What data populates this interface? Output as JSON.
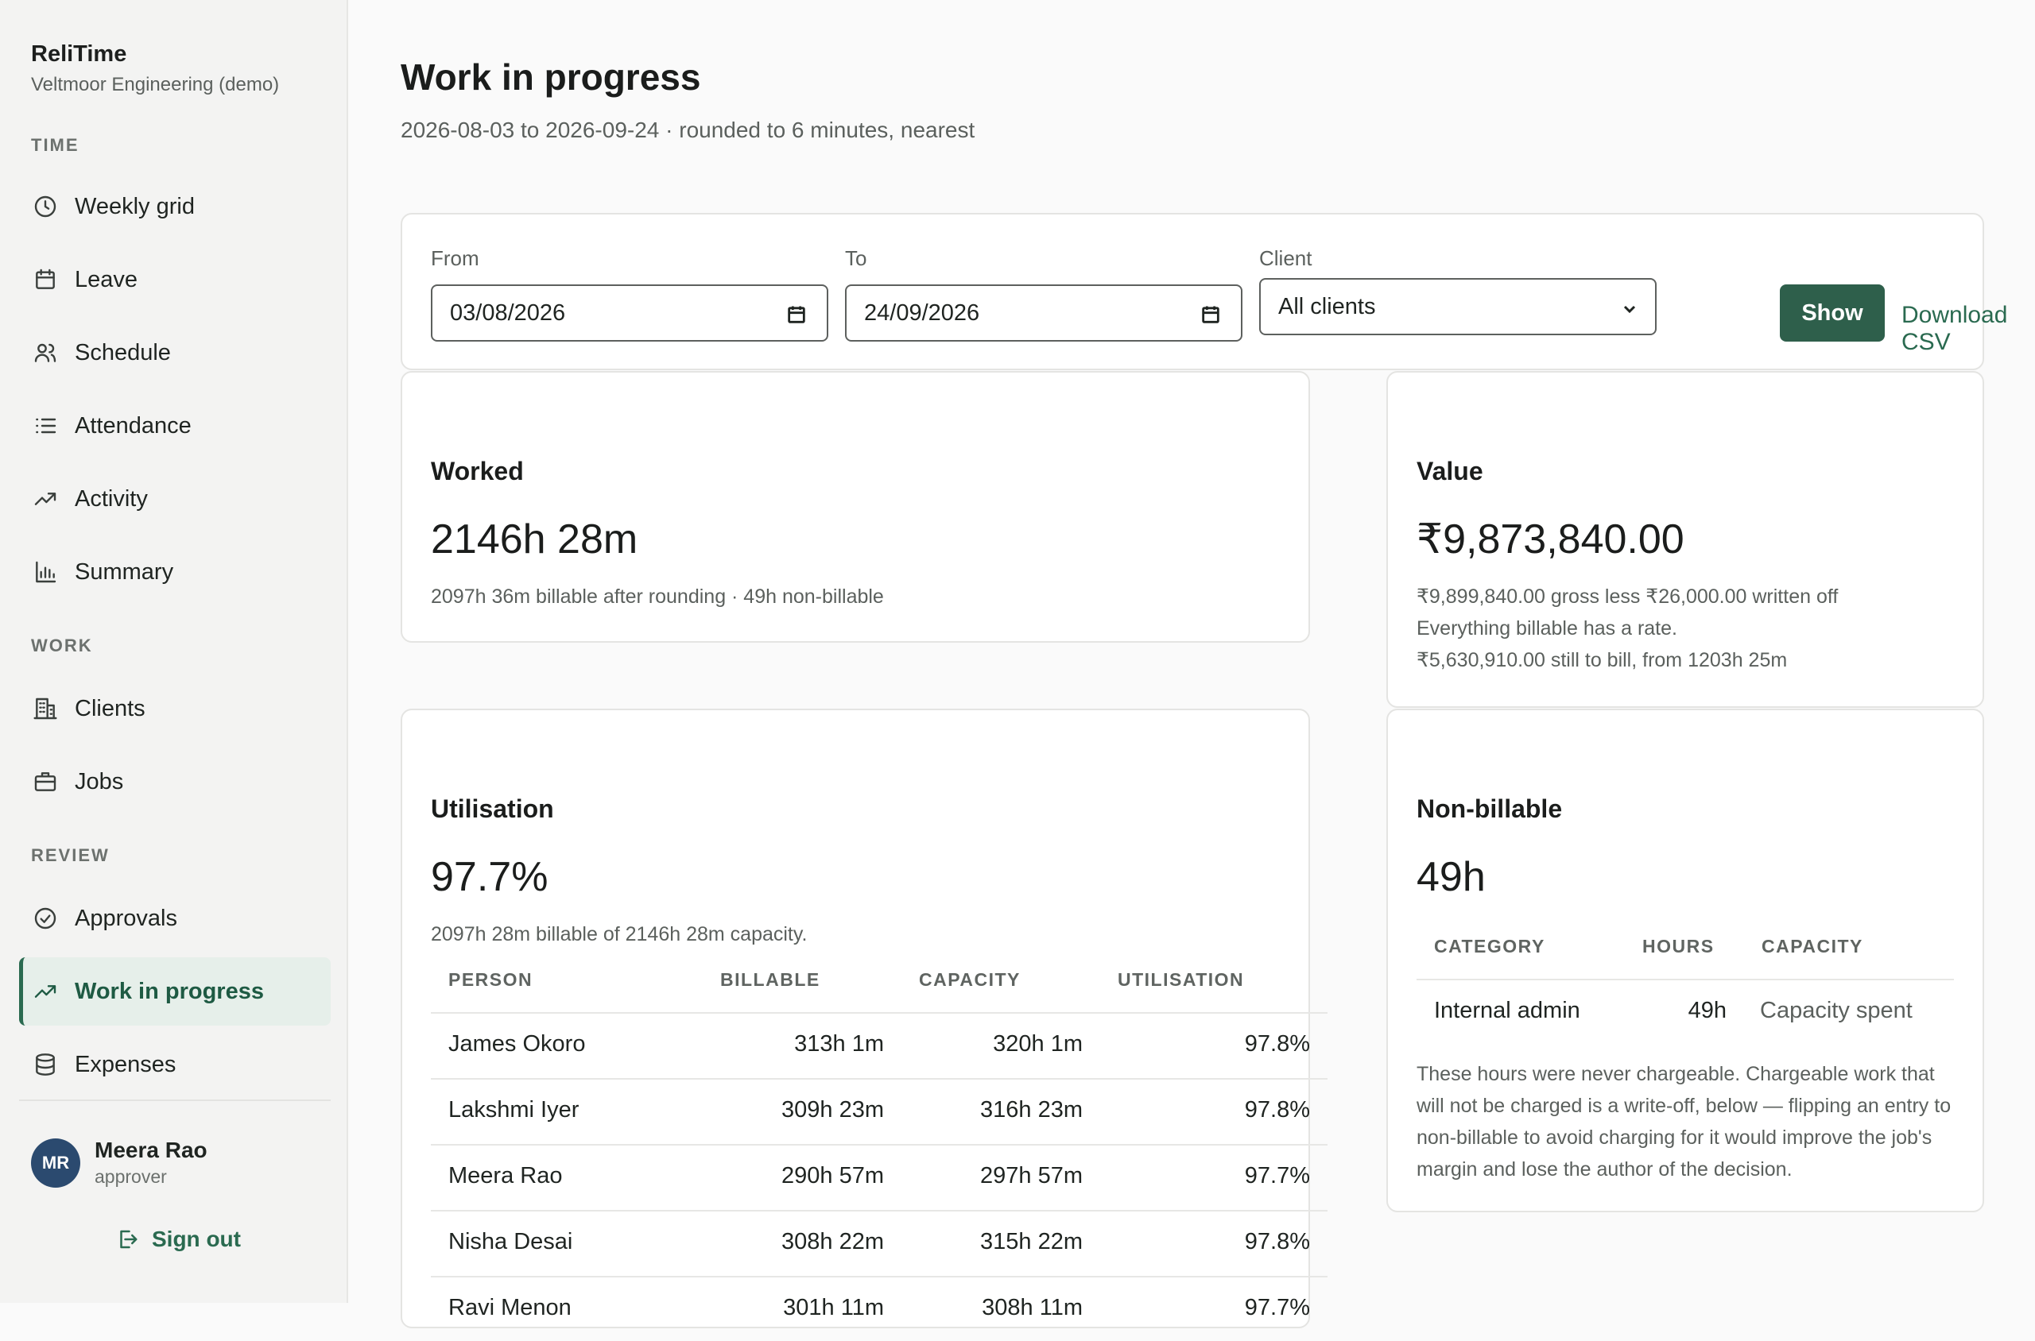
{
  "brand": {
    "name": "ReliTime",
    "org": "Veltmoor Engineering (demo)"
  },
  "sidebar": {
    "sections": {
      "time": "TIME",
      "work": "WORK",
      "review": "REVIEW"
    },
    "items": [
      {
        "label": "Weekly grid",
        "icon": "clock-icon"
      },
      {
        "label": "Leave",
        "icon": "calendar-icon"
      },
      {
        "label": "Schedule",
        "icon": "users-icon"
      },
      {
        "label": "Attendance",
        "icon": "list-icon"
      },
      {
        "label": "Activity",
        "icon": "trend-icon"
      },
      {
        "label": "Summary",
        "icon": "bar-chart-icon"
      },
      {
        "label": "Clients",
        "icon": "building-icon"
      },
      {
        "label": "Jobs",
        "icon": "briefcase-icon"
      },
      {
        "label": "Approvals",
        "icon": "check-circle-icon"
      },
      {
        "label": "Work in progress",
        "icon": "trend-icon",
        "active": true
      },
      {
        "label": "Expenses",
        "icon": "database-icon"
      }
    ]
  },
  "user": {
    "initials": "MR",
    "name": "Meera Rao",
    "role": "approver",
    "signout": "Sign out"
  },
  "page": {
    "title": "Work in progress",
    "subtitle": "2026-08-03 to 2026-09-24 · rounded to 6 minutes, nearest"
  },
  "filters": {
    "from_label": "From",
    "from_value": "03/08/2026",
    "to_label": "To",
    "to_value": "24/09/2026",
    "client_label": "Client",
    "client_value": "All clients",
    "show_label": "Show",
    "csv_label": "Download CSV"
  },
  "worked": {
    "title": "Worked",
    "value": "2146h 28m",
    "note": "2097h 36m billable after rounding · 49h non-billable"
  },
  "value_card": {
    "title": "Value",
    "value": "₹9,873,840.00",
    "line1": "₹9,899,840.00 gross less ₹26,000.00 written off",
    "line2": "Everything billable has a rate.",
    "line3": "₹5,630,910.00 still to bill, from 1203h 25m"
  },
  "utilisation": {
    "title": "Utilisation",
    "value": "97.7%",
    "note": "2097h 28m billable of 2146h 28m capacity.",
    "headers": {
      "person": "PERSON",
      "billable": "BILLABLE",
      "capacity": "CAPACITY",
      "utilisation": "UTILISATION"
    },
    "rows": [
      {
        "person": "James Okoro",
        "billable": "313h 1m",
        "capacity": "320h 1m",
        "utilisation": "97.8%"
      },
      {
        "person": "Lakshmi Iyer",
        "billable": "309h 23m",
        "capacity": "316h 23m",
        "utilisation": "97.8%"
      },
      {
        "person": "Meera Rao",
        "billable": "290h 57m",
        "capacity": "297h 57m",
        "utilisation": "97.7%"
      },
      {
        "person": "Nisha Desai",
        "billable": "308h 22m",
        "capacity": "315h 22m",
        "utilisation": "97.8%"
      },
      {
        "person": "Ravi Menon",
        "billable": "301h 11m",
        "capacity": "308h 11m",
        "utilisation": "97.7%"
      }
    ]
  },
  "nonbillable": {
    "title": "Non-billable",
    "value": "49h",
    "headers": {
      "category": "CATEGORY",
      "hours": "HOURS",
      "capacity": "CAPACITY"
    },
    "rows": [
      {
        "category": "Internal admin",
        "hours": "49h",
        "capacity": "Capacity spent"
      }
    ],
    "note": "These hours were never chargeable. Chargeable work that will not be charged is a write-off, below — flipping an entry to non-billable to avoid charging for it would improve the job's margin and lose the author of the decision."
  }
}
